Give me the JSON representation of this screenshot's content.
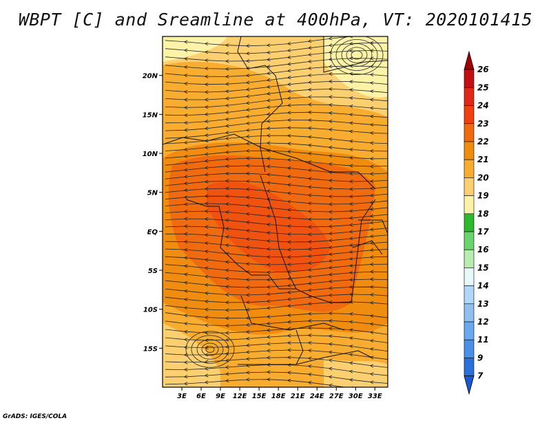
{
  "title": "WBPT [C] and Sreamline at 400hPa, VT: 2020101415",
  "credit": "GrADS: IGES/COLA",
  "map": {
    "lon_range": [
      0,
      35
    ],
    "lat_range": [
      -20,
      25
    ],
    "lon_ticks": [
      "3E",
      "6E",
      "9E",
      "12E",
      "15E",
      "18E",
      "21E",
      "24E",
      "27E",
      "30E",
      "33E"
    ],
    "lon_tick_values": [
      3,
      6,
      9,
      12,
      15,
      18,
      21,
      24,
      27,
      30,
      33
    ],
    "lat_ticks": [
      "20N",
      "15N",
      "10N",
      "5N",
      "EQ",
      "5S",
      "10S",
      "15S"
    ],
    "lat_tick_values": [
      20,
      15,
      10,
      5,
      0,
      -5,
      -10,
      -15
    ]
  },
  "colorbar": {
    "labels": [
      "26",
      "25",
      "24",
      "23",
      "22",
      "21",
      "20",
      "19",
      "18",
      "17",
      "16",
      "15",
      "14",
      "13",
      "12",
      "11",
      "9",
      "7"
    ],
    "colors": [
      "#a00000",
      "#c01010",
      "#e02818",
      "#f04010",
      "#f06a10",
      "#f08c10",
      "#f8ac30",
      "#fcd070",
      "#fdf3a8",
      "#2eb82e",
      "#6cd46c",
      "#b8ecb0",
      "#e6f8f8",
      "#b0d8f8",
      "#90c0f0",
      "#6aa8f0",
      "#4a90e8",
      "#2a70d8",
      "#1a58d0"
    ]
  }
}
